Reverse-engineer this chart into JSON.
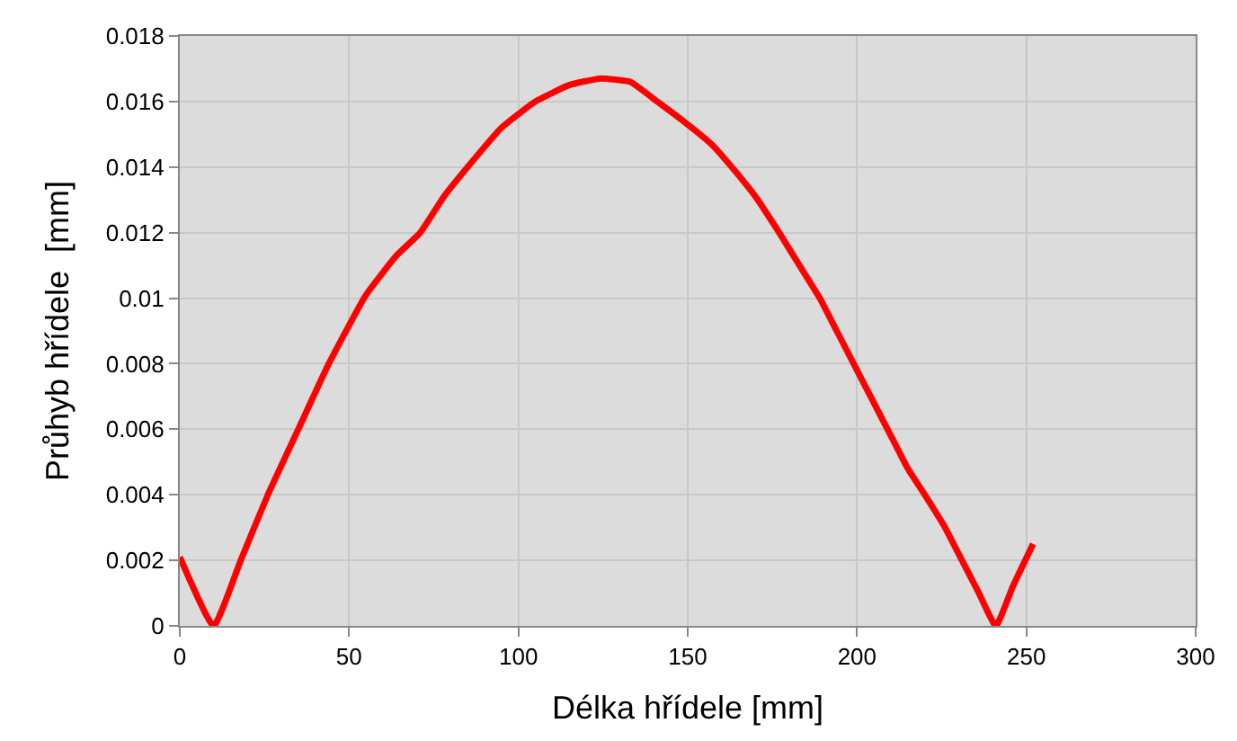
{
  "chart_data": {
    "type": "line",
    "xlabel": "Délka hřídele [mm]",
    "ylabel": "Průhyb hřídele  [mm]",
    "series": [
      {
        "color": "#ff0000",
        "x": [
          0,
          10,
          18,
          26,
          35,
          44,
          55,
          64,
          71,
          78,
          85,
          95,
          105,
          115,
          124,
          133,
          141,
          150,
          157,
          163,
          170,
          177,
          183,
          189,
          194,
          199,
          205,
          210,
          215,
          220,
          226,
          231,
          236,
          241,
          246,
          252
        ],
        "values": [
          0.0021,
          0,
          0.002,
          0.004,
          0.006,
          0.008,
          0.0101,
          0.0113,
          0.012,
          0.0131,
          0.014,
          0.0152,
          0.016,
          0.0165,
          0.0167,
          0.0166,
          0.016,
          0.0153,
          0.0147,
          0.014,
          0.0131,
          0.012,
          0.011,
          0.01,
          0.009,
          0.008,
          0.0068,
          0.0058,
          0.0048,
          0.004,
          0.003,
          0.002,
          0.001,
          0,
          0.0012,
          0.0025
        ]
      }
    ],
    "xlim": [
      0,
      300
    ],
    "xticks": [
      0,
      50,
      100,
      150,
      200,
      250,
      300
    ],
    "ylim": [
      0,
      0.018
    ],
    "yticks": [
      0,
      0.002,
      0.004,
      0.006,
      0.008,
      0.01,
      0.012,
      0.014,
      0.016,
      0.018
    ],
    "grid": true,
    "legend": false,
    "marker": "none",
    "line_style": "solid"
  }
}
